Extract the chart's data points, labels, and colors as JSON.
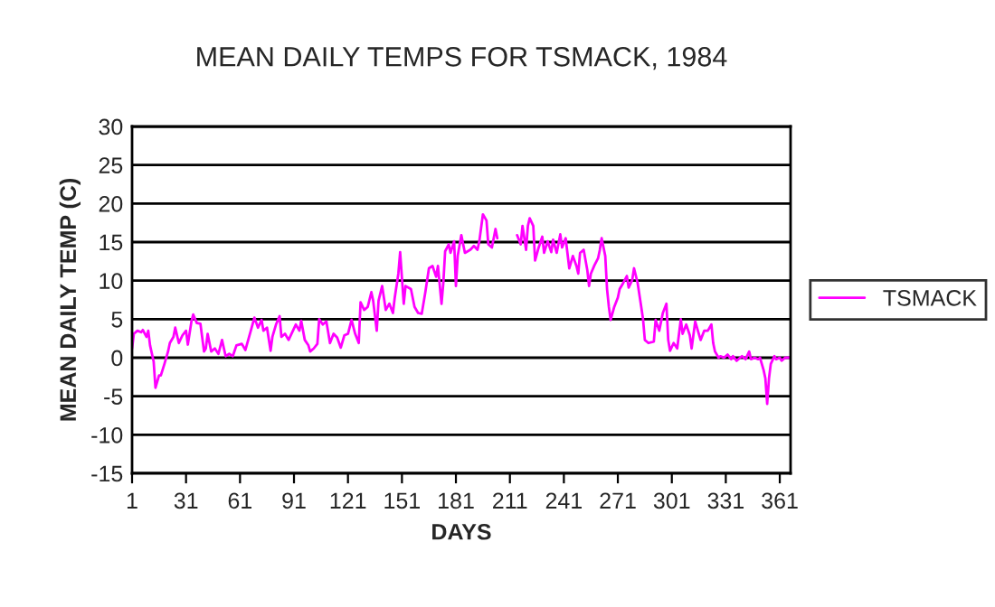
{
  "chart_data": {
    "type": "line",
    "title": "MEAN DAILY TEMPS FOR TSMACK, 1984",
    "xlabel": "DAYS",
    "ylabel": "MEAN DAILY TEMP (C)",
    "x": [
      1,
      2,
      4,
      6,
      7,
      9,
      10,
      11,
      13,
      14,
      16,
      17,
      19,
      21,
      22,
      24,
      25,
      27,
      29,
      31,
      32,
      34,
      35,
      37,
      39,
      41,
      42,
      43,
      45,
      47,
      49,
      51,
      53,
      55,
      57,
      59,
      62,
      64,
      67,
      69,
      71,
      73,
      74,
      76,
      78,
      79,
      81,
      83,
      84,
      86,
      88,
      90,
      92,
      94,
      95,
      97,
      99,
      100,
      102,
      104,
      105,
      107,
      109,
      111,
      113,
      115,
      117,
      119,
      121,
      123,
      125,
      127,
      128,
      130,
      132,
      134,
      135,
      137,
      138,
      140,
      142,
      144,
      146,
      147,
      149,
      150,
      152,
      153,
      156,
      158,
      160,
      162,
      164,
      166,
      168,
      170,
      171,
      173,
      174,
      175,
      177,
      178,
      180,
      181,
      182,
      184,
      186,
      189,
      191,
      193,
      194,
      196,
      198,
      199,
      201,
      203,
      204,
      210,
      215,
      217,
      218,
      220,
      221,
      222,
      224,
      225,
      227,
      229,
      230,
      232,
      234,
      235,
      237,
      239,
      240,
      242,
      244,
      246,
      248,
      249,
      250,
      252,
      254,
      255,
      256,
      258,
      260,
      261,
      262,
      264,
      265,
      266,
      267,
      269,
      271,
      272,
      274,
      276,
      277,
      279,
      280,
      282,
      284,
      285,
      286,
      288,
      291,
      292,
      294,
      296,
      298,
      299,
      300,
      302,
      304,
      306,
      307,
      309,
      311,
      312,
      314,
      316,
      317,
      319,
      321,
      323,
      324,
      325,
      327,
      328,
      330,
      332,
      334,
      335,
      337,
      339,
      340,
      342,
      344,
      345,
      347,
      349,
      350,
      352,
      353,
      354,
      355,
      356,
      358,
      359,
      361,
      362,
      364,
      366
    ],
    "series": [
      {
        "name": "TSMACK",
        "color": "#ff00ff",
        "values": [
          1.2,
          3.1,
          3.5,
          3.3,
          3.6,
          2.7,
          3.5,
          1.6,
          -0.5,
          -3.9,
          -2.3,
          -2.3,
          -0.8,
          0.8,
          1.9,
          2.7,
          3.9,
          1.9,
          2.9,
          3.5,
          1.7,
          4.7,
          5.6,
          4.5,
          4.4,
          0.8,
          1.2,
          3.1,
          0.8,
          1.2,
          0.5,
          2.3,
          0.2,
          0.5,
          0.2,
          1.6,
          1.8,
          1.0,
          3.5,
          5.2,
          3.9,
          4.9,
          3.5,
          3.9,
          0.9,
          2.7,
          4.3,
          5.4,
          2.7,
          3.1,
          2.3,
          3.3,
          4.3,
          3.5,
          4.8,
          2.3,
          1.6,
          0.8,
          1.2,
          1.8,
          5.0,
          4.3,
          4.7,
          1.9,
          3.1,
          2.6,
          1.3,
          2.9,
          3.1,
          4.9,
          3.1,
          1.9,
          7.2,
          6.2,
          6.6,
          8.5,
          7.4,
          3.5,
          7.4,
          9.3,
          6.2,
          7.0,
          5.8,
          7.8,
          10.9,
          13.7,
          7.0,
          9.3,
          8.9,
          6.6,
          5.8,
          5.7,
          8.5,
          11.6,
          11.9,
          10.5,
          11.9,
          7.0,
          9.7,
          13.8,
          14.7,
          13.6,
          15.1,
          9.3,
          13.2,
          15.9,
          13.6,
          14.0,
          14.5,
          14.0,
          15.1,
          18.6,
          17.8,
          14.7,
          14.3,
          16.7,
          15.5,
          null,
          15.9,
          14.7,
          17.1,
          14.0,
          17.1,
          18.1,
          17.1,
          12.6,
          14.3,
          15.7,
          13.6,
          15.1,
          13.7,
          15.3,
          13.6,
          16.0,
          14.3,
          15.5,
          11.6,
          13.2,
          11.9,
          10.9,
          13.6,
          14.0,
          11.4,
          9.3,
          10.9,
          12.0,
          12.9,
          14.0,
          15.5,
          13.2,
          8.9,
          6.6,
          4.9,
          6.6,
          7.8,
          8.9,
          9.7,
          10.6,
          9.1,
          10.1,
          11.6,
          9.7,
          6.6,
          5.0,
          2.3,
          1.9,
          2.1,
          4.9,
          3.5,
          5.8,
          7.0,
          2.3,
          0.9,
          1.9,
          1.2,
          5.0,
          3.1,
          4.3,
          2.9,
          1.2,
          4.7,
          3.1,
          2.3,
          3.5,
          3.5,
          4.3,
          1.9,
          0.8,
          0.0,
          0.2,
          0.0,
          0.4,
          -0.2,
          0.2,
          -0.4,
          0.0,
          0.2,
          -0.2,
          0.8,
          -0.2,
          0.0,
          -0.2,
          0.0,
          -1.6,
          -2.7,
          -6.0,
          -2.7,
          -0.8,
          0.2,
          -0.2,
          0.0,
          -0.4,
          0.0,
          0.0
        ]
      }
    ],
    "xlim": [
      1,
      367
    ],
    "xticks": [
      1,
      31,
      61,
      91,
      121,
      151,
      181,
      211,
      241,
      271,
      301,
      331,
      361
    ],
    "ylim": [
      -15,
      30
    ],
    "yticks": [
      -15,
      -10,
      -5,
      0,
      5,
      10,
      15,
      20,
      25,
      30
    ],
    "grid": "y",
    "legend": "right"
  }
}
